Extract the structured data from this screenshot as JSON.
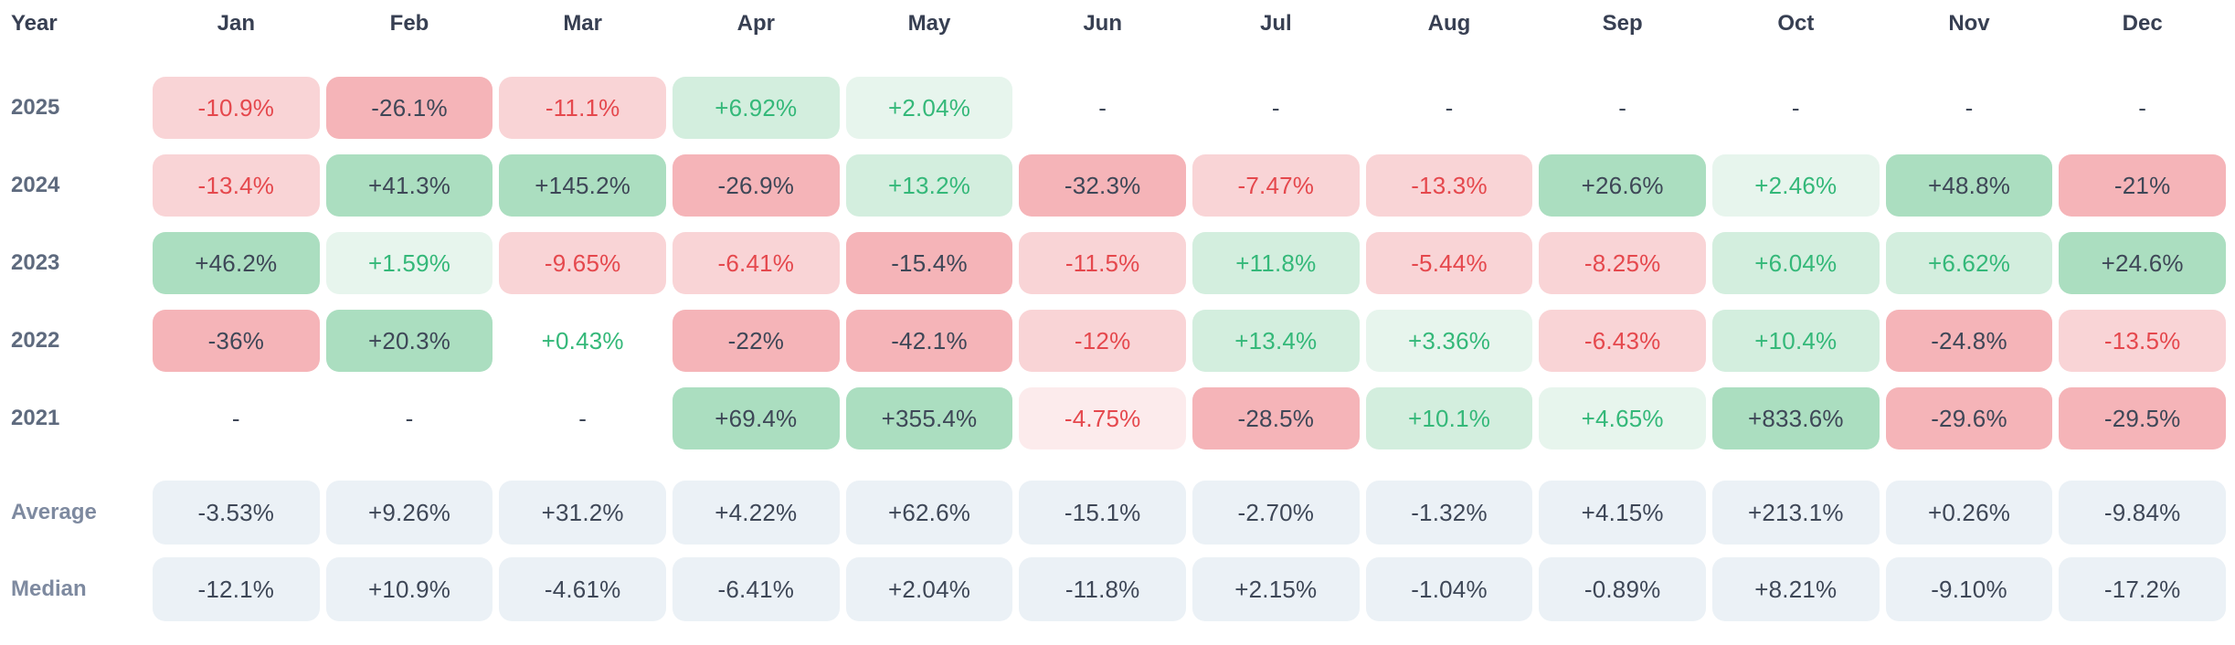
{
  "chart_data": {
    "type": "heatmap",
    "corner_label": "Year",
    "columns": [
      "Jan",
      "Feb",
      "Mar",
      "Apr",
      "May",
      "Jun",
      "Jul",
      "Aug",
      "Sep",
      "Oct",
      "Nov",
      "Dec"
    ],
    "rows": [
      {
        "year": "2025",
        "display": [
          "-10.9%",
          "-26.1%",
          "-11.1%",
          "+6.92%",
          "+2.04%",
          "-",
          "-",
          "-",
          "-",
          "-",
          "-",
          "-"
        ],
        "values": [
          -10.9,
          -26.1,
          -11.1,
          6.92,
          2.04,
          null,
          null,
          null,
          null,
          null,
          null,
          null
        ]
      },
      {
        "year": "2024",
        "display": [
          "-13.4%",
          "+41.3%",
          "+145.2%",
          "-26.9%",
          "+13.2%",
          "-32.3%",
          "-7.47%",
          "-13.3%",
          "+26.6%",
          "+2.46%",
          "+48.8%",
          "-21%"
        ],
        "values": [
          -13.4,
          41.3,
          145.2,
          -26.9,
          13.2,
          -32.3,
          -7.47,
          -13.3,
          26.6,
          2.46,
          48.8,
          -21
        ]
      },
      {
        "year": "2023",
        "display": [
          "+46.2%",
          "+1.59%",
          "-9.65%",
          "-6.41%",
          "-15.4%",
          "-11.5%",
          "+11.8%",
          "-5.44%",
          "-8.25%",
          "+6.04%",
          "+6.62%",
          "+24.6%"
        ],
        "values": [
          46.2,
          1.59,
          -9.65,
          -6.41,
          -15.4,
          -11.5,
          11.8,
          -5.44,
          -8.25,
          6.04,
          6.62,
          24.6
        ]
      },
      {
        "year": "2022",
        "display": [
          "-36%",
          "+20.3%",
          "+0.43%",
          "-22%",
          "-42.1%",
          "-12%",
          "+13.4%",
          "+3.36%",
          "-6.43%",
          "+10.4%",
          "-24.8%",
          "-13.5%"
        ],
        "values": [
          -36,
          20.3,
          0.43,
          -22,
          -42.1,
          -12,
          13.4,
          3.36,
          -6.43,
          10.4,
          -24.8,
          -13.5
        ]
      },
      {
        "year": "2021",
        "display": [
          "-",
          "-",
          "-",
          "+69.4%",
          "+355.4%",
          "-4.75%",
          "-28.5%",
          "+10.1%",
          "+4.65%",
          "+833.6%",
          "-29.6%",
          "-29.5%"
        ],
        "values": [
          null,
          null,
          null,
          69.4,
          355.4,
          -4.75,
          -28.5,
          10.1,
          4.65,
          833.6,
          -29.6,
          -29.5
        ]
      }
    ],
    "stat_rows": [
      {
        "label": "Average",
        "display": [
          "-3.53%",
          "+9.26%",
          "+31.2%",
          "+4.22%",
          "+62.6%",
          "-15.1%",
          "-2.70%",
          "-1.32%",
          "+4.15%",
          "+213.1%",
          "+0.26%",
          "-9.84%"
        ],
        "values": [
          -3.53,
          9.26,
          31.2,
          4.22,
          62.6,
          -15.1,
          -2.7,
          -1.32,
          4.15,
          213.1,
          0.26,
          -9.84
        ]
      },
      {
        "label": "Median",
        "display": [
          "-12.1%",
          "+10.9%",
          "-4.61%",
          "-6.41%",
          "+2.04%",
          "-11.8%",
          "+2.15%",
          "-1.04%",
          "-0.89%",
          "+8.21%",
          "-9.10%",
          "-17.2%"
        ],
        "values": [
          -12.1,
          10.9,
          -4.61,
          -6.41,
          2.04,
          -11.8,
          2.15,
          -1.04,
          -0.89,
          8.21,
          -9.1,
          -17.2
        ]
      }
    ],
    "colors": {
      "green_base": "#37b069",
      "red_base": "#e53a44",
      "positive_text": "#34b879",
      "negative_text": "#e5484d",
      "dark_text": "#3e4757",
      "stat_cell_bg": "#ebf1f6",
      "header_text": "#373f52",
      "year_label_text": "#5e6a7e",
      "stat_label_text": "#7e8aa0"
    }
  }
}
